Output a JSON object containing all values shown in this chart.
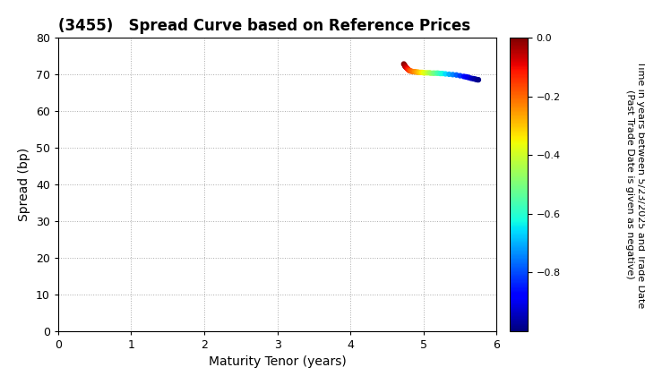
{
  "title": "(3455)   Spread Curve based on Reference Prices",
  "xlabel": "Maturity Tenor (years)",
  "ylabel": "Spread (bp)",
  "colorbar_label": "Time in years between 5/23/2025 and Trade Date\n(Past Trade Date is given as negative)",
  "xlim": [
    0,
    6
  ],
  "ylim": [
    0,
    80
  ],
  "xticks": [
    0,
    1,
    2,
    3,
    4,
    5,
    6
  ],
  "yticks": [
    0,
    10,
    20,
    30,
    40,
    50,
    60,
    70,
    80
  ],
  "colorbar_ticks": [
    0.0,
    -0.2,
    -0.4,
    -0.6,
    -0.8
  ],
  "colorbar_min": -1.0,
  "colorbar_max": 0.0,
  "scatter_tenor": [
    4.73,
    4.74,
    4.745,
    4.75,
    4.76,
    4.77,
    4.78,
    4.79,
    4.8,
    4.81,
    4.82,
    4.84,
    4.86,
    4.88,
    4.9,
    4.92,
    4.94,
    4.96,
    4.98,
    5.0,
    5.02,
    5.05,
    5.08,
    5.1,
    5.13,
    5.15,
    5.18,
    5.2,
    5.23,
    5.26,
    5.3,
    5.35,
    5.4,
    5.45,
    5.5,
    5.55,
    5.58,
    5.6,
    5.62,
    5.65,
    5.68,
    5.7,
    5.72,
    5.74,
    5.75
  ],
  "scatter_spread": [
    72.8,
    72.5,
    72.3,
    72.1,
    71.9,
    71.7,
    71.5,
    71.3,
    71.1,
    71.0,
    70.9,
    70.8,
    70.7,
    70.7,
    70.6,
    70.6,
    70.5,
    70.5,
    70.5,
    70.4,
    70.4,
    70.4,
    70.4,
    70.3,
    70.3,
    70.3,
    70.3,
    70.3,
    70.2,
    70.2,
    70.1,
    70.0,
    69.9,
    69.8,
    69.6,
    69.4,
    69.3,
    69.2,
    69.1,
    68.9,
    68.8,
    68.7,
    68.6,
    68.5,
    68.5
  ],
  "scatter_time": [
    0.0,
    -0.02,
    -0.03,
    -0.04,
    -0.06,
    -0.08,
    -0.1,
    -0.12,
    -0.14,
    -0.16,
    -0.18,
    -0.2,
    -0.22,
    -0.24,
    -0.26,
    -0.28,
    -0.3,
    -0.32,
    -0.34,
    -0.36,
    -0.38,
    -0.41,
    -0.44,
    -0.46,
    -0.49,
    -0.51,
    -0.54,
    -0.56,
    -0.59,
    -0.62,
    -0.66,
    -0.7,
    -0.74,
    -0.78,
    -0.82,
    -0.86,
    -0.88,
    -0.9,
    -0.91,
    -0.93,
    -0.95,
    -0.96,
    -0.97,
    -0.98,
    -0.99
  ],
  "marker_size": 12,
  "background_color": "#ffffff",
  "grid_color": "#888888",
  "title_fontsize": 12,
  "label_fontsize": 10,
  "tick_fontsize": 9,
  "cbar_fontsize": 8
}
